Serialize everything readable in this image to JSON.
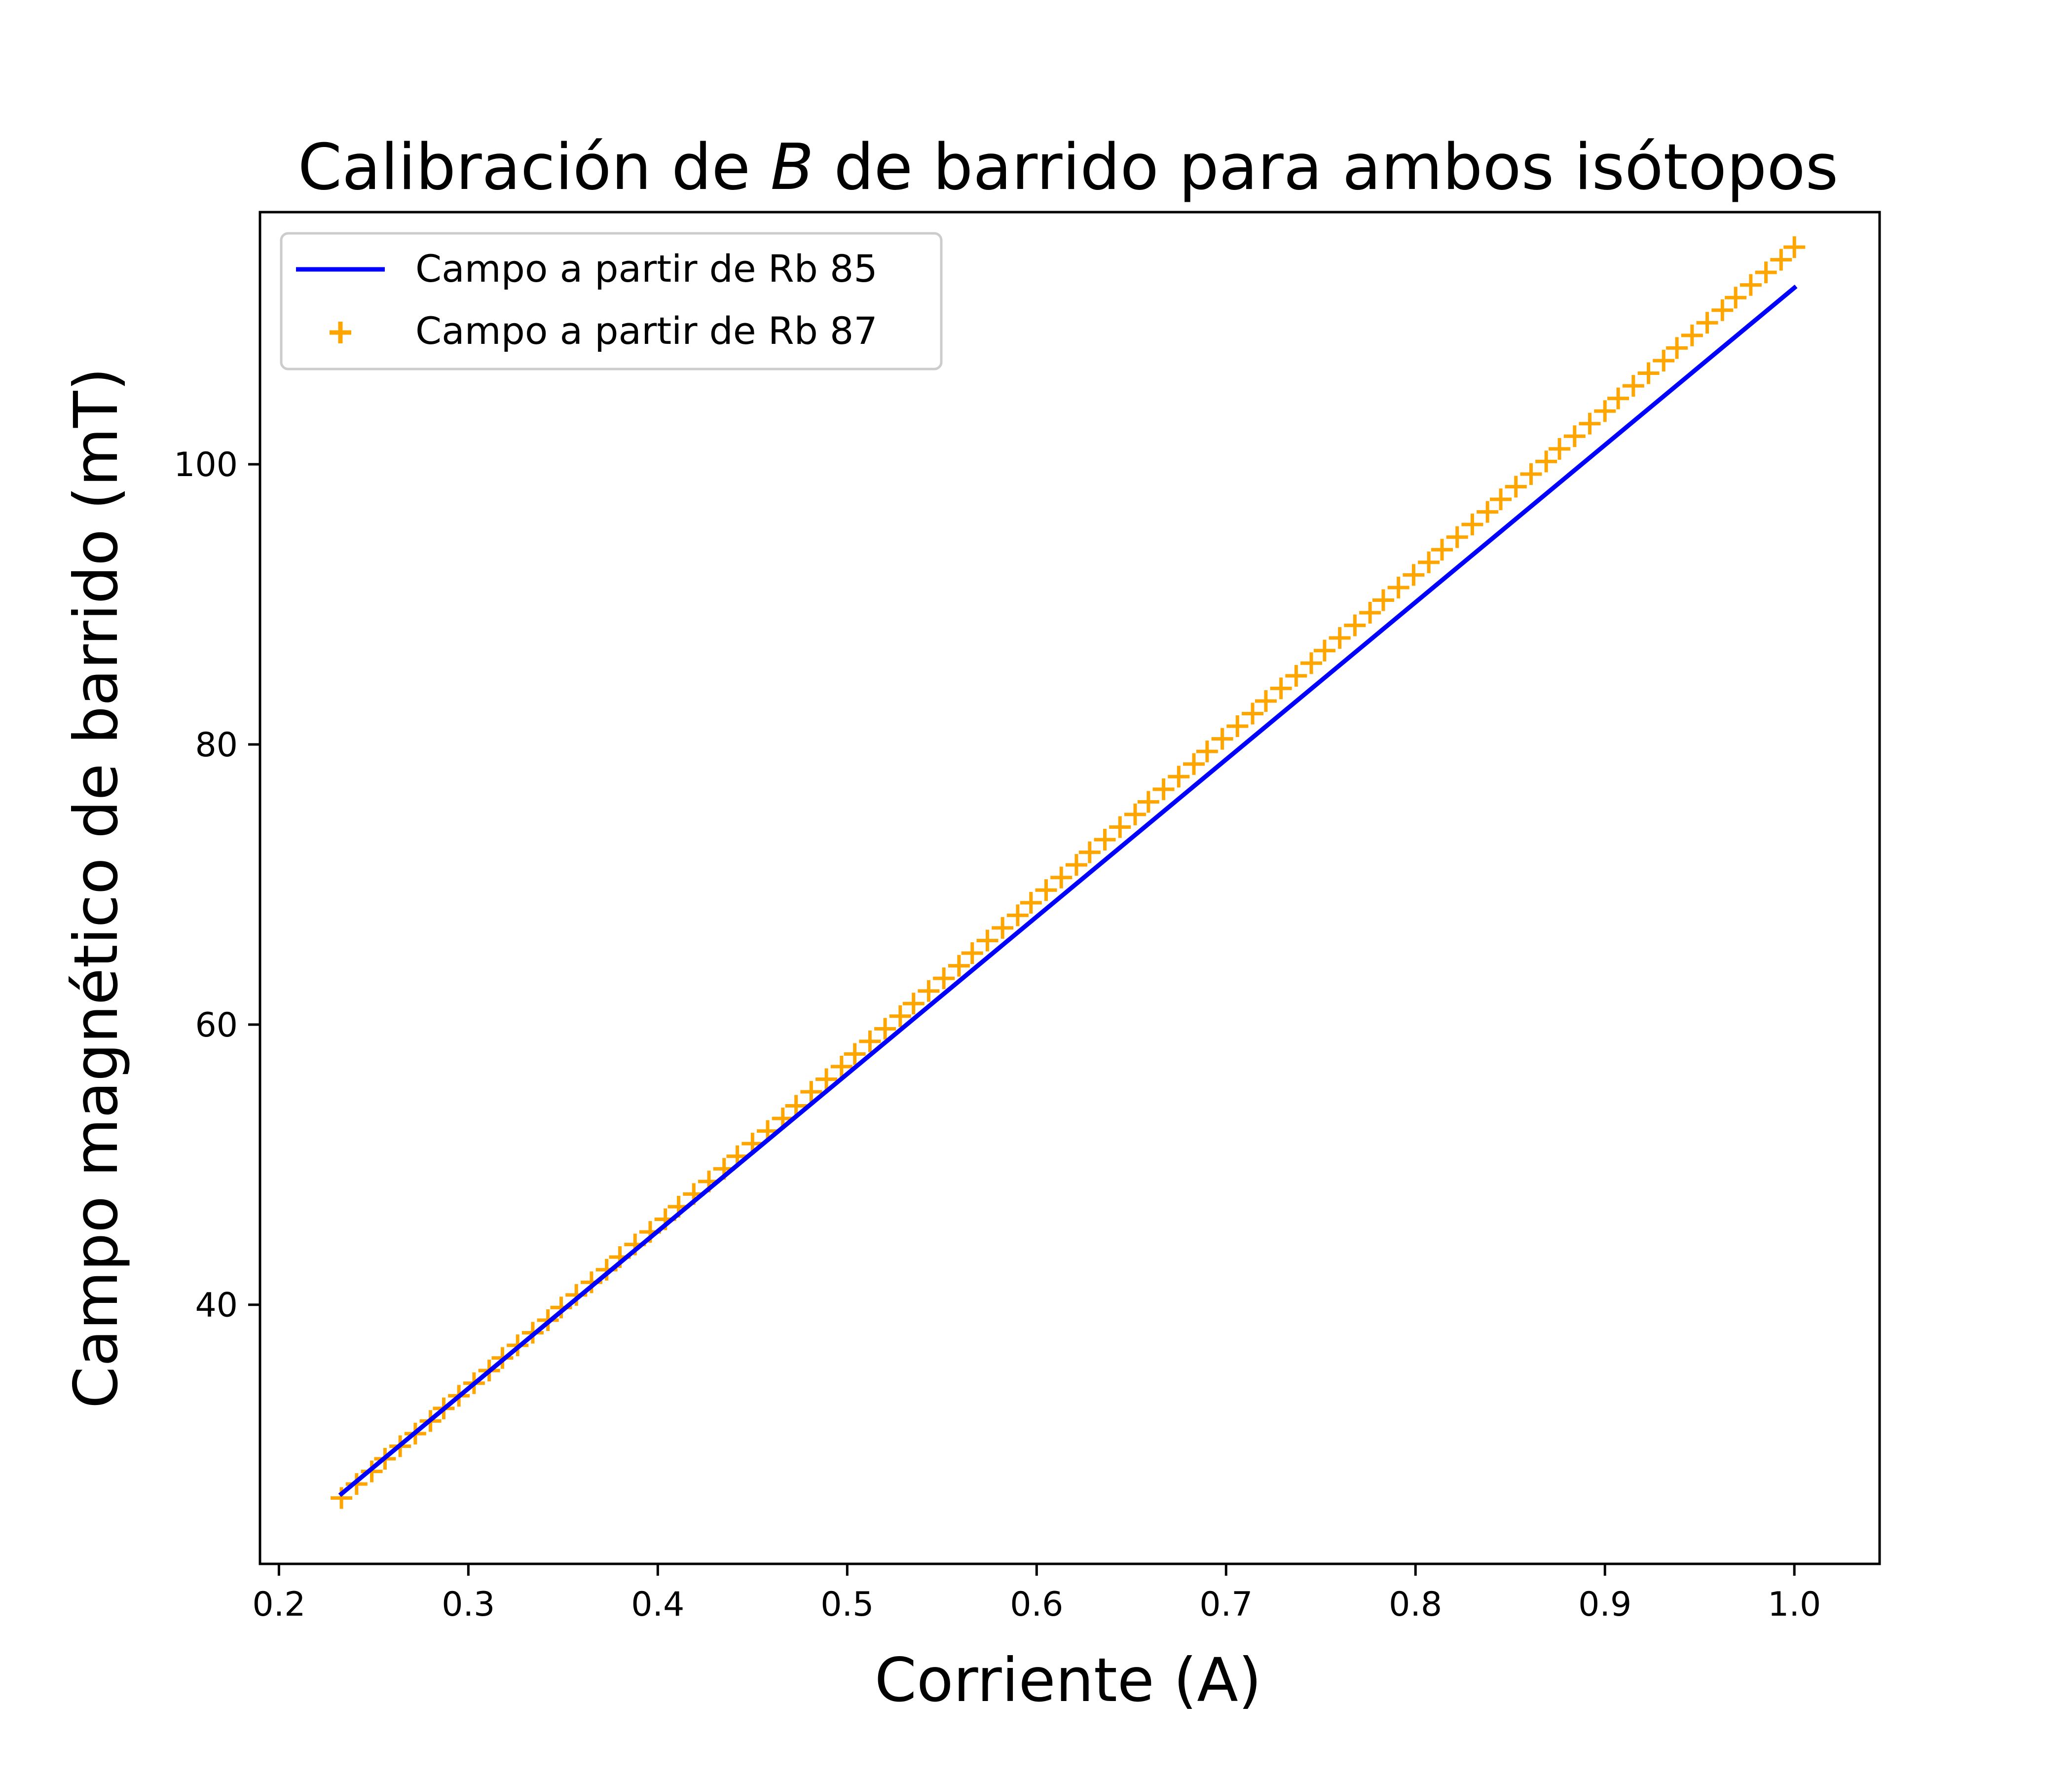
{
  "chart_data": {
    "type": "line",
    "title_parts": [
      "Calibración de ",
      "B",
      " de barrido para ambos isótopos"
    ],
    "xlabel": "Corriente (A)",
    "ylabel": "Campo magnético de barrido (mT)",
    "xlim": [
      0.19,
      1.045
    ],
    "ylim": [
      21.5,
      118
    ],
    "x_ticks": [
      0.2,
      0.3,
      0.4,
      0.5,
      0.6,
      0.7,
      0.8,
      0.9,
      1.0
    ],
    "x_tick_labels": [
      "0.2",
      "0.3",
      "0.4",
      "0.5",
      "0.6",
      "0.7",
      "0.8",
      "0.9",
      "1.0"
    ],
    "y_ticks": [
      40,
      60,
      80,
      100
    ],
    "y_tick_labels": [
      "40",
      "60",
      "80",
      "100"
    ],
    "grid": false,
    "legend_position": "top-left",
    "series": [
      {
        "name": "Campo a partir de Rb 85",
        "style": "line",
        "color": "#0000ff",
        "x": [
          0.233,
          1.0
        ],
        "y": [
          26.5,
          112.6
        ]
      },
      {
        "name": "Campo a partir de Rb 87",
        "style": "marker-plus",
        "color": "#ffa500",
        "x": [
          0.233,
          0.241,
          0.249,
          0.256,
          0.264,
          0.272,
          0.28,
          0.287,
          0.295,
          0.303,
          0.311,
          0.318,
          0.326,
          0.334,
          0.342,
          0.349,
          0.357,
          0.365,
          0.373,
          0.38,
          0.388,
          0.396,
          0.404,
          0.411,
          0.419,
          0.427,
          0.435,
          0.442,
          0.45,
          0.458,
          0.466,
          0.473,
          0.481,
          0.489,
          0.497,
          0.504,
          0.512,
          0.52,
          0.528,
          0.535,
          0.543,
          0.551,
          0.559,
          0.566,
          0.574,
          0.582,
          0.59,
          0.597,
          0.605,
          0.613,
          0.621,
          0.628,
          0.636,
          0.644,
          0.652,
          0.659,
          0.667,
          0.675,
          0.683,
          0.69,
          0.698,
          0.706,
          0.714,
          0.721,
          0.729,
          0.737,
          0.745,
          0.752,
          0.76,
          0.768,
          0.776,
          0.783,
          0.791,
          0.799,
          0.807,
          0.814,
          0.822,
          0.83,
          0.838,
          0.845,
          0.853,
          0.861,
          0.869,
          0.876,
          0.884,
          0.892,
          0.9,
          0.907,
          0.915,
          0.923,
          0.931,
          0.938,
          0.946,
          0.954,
          0.962,
          0.969,
          0.977,
          0.985,
          0.993,
          1.0
        ],
        "y": [
          26.2,
          27.2,
          28.1,
          29.0,
          29.9,
          30.8,
          31.7,
          32.6,
          33.5,
          34.4,
          35.3,
          36.2,
          37.1,
          38.0,
          38.9,
          39.8,
          40.7,
          41.6,
          42.5,
          43.4,
          44.3,
          45.2,
          46.1,
          47.0,
          47.9,
          48.8,
          49.7,
          50.6,
          51.5,
          52.4,
          53.3,
          54.2,
          55.2,
          56.1,
          57.0,
          57.9,
          58.8,
          59.7,
          60.6,
          61.5,
          62.4,
          63.3,
          64.2,
          65.1,
          66.0,
          66.9,
          67.8,
          68.7,
          69.6,
          70.5,
          71.4,
          72.3,
          73.2,
          74.1,
          75.0,
          75.9,
          76.8,
          77.7,
          78.6,
          79.5,
          80.4,
          81.3,
          82.2,
          83.1,
          84.0,
          84.9,
          85.8,
          86.7,
          87.6,
          88.5,
          89.4,
          90.3,
          91.2,
          92.1,
          93.0,
          93.9,
          94.8,
          95.7,
          96.6,
          97.5,
          98.4,
          99.3,
          100.2,
          101.1,
          102.0,
          102.9,
          103.8,
          104.7,
          105.6,
          106.5,
          107.4,
          108.3,
          109.2,
          110.1,
          111.0,
          111.9,
          112.8,
          113.7,
          114.6,
          115.5
        ]
      }
    ]
  }
}
